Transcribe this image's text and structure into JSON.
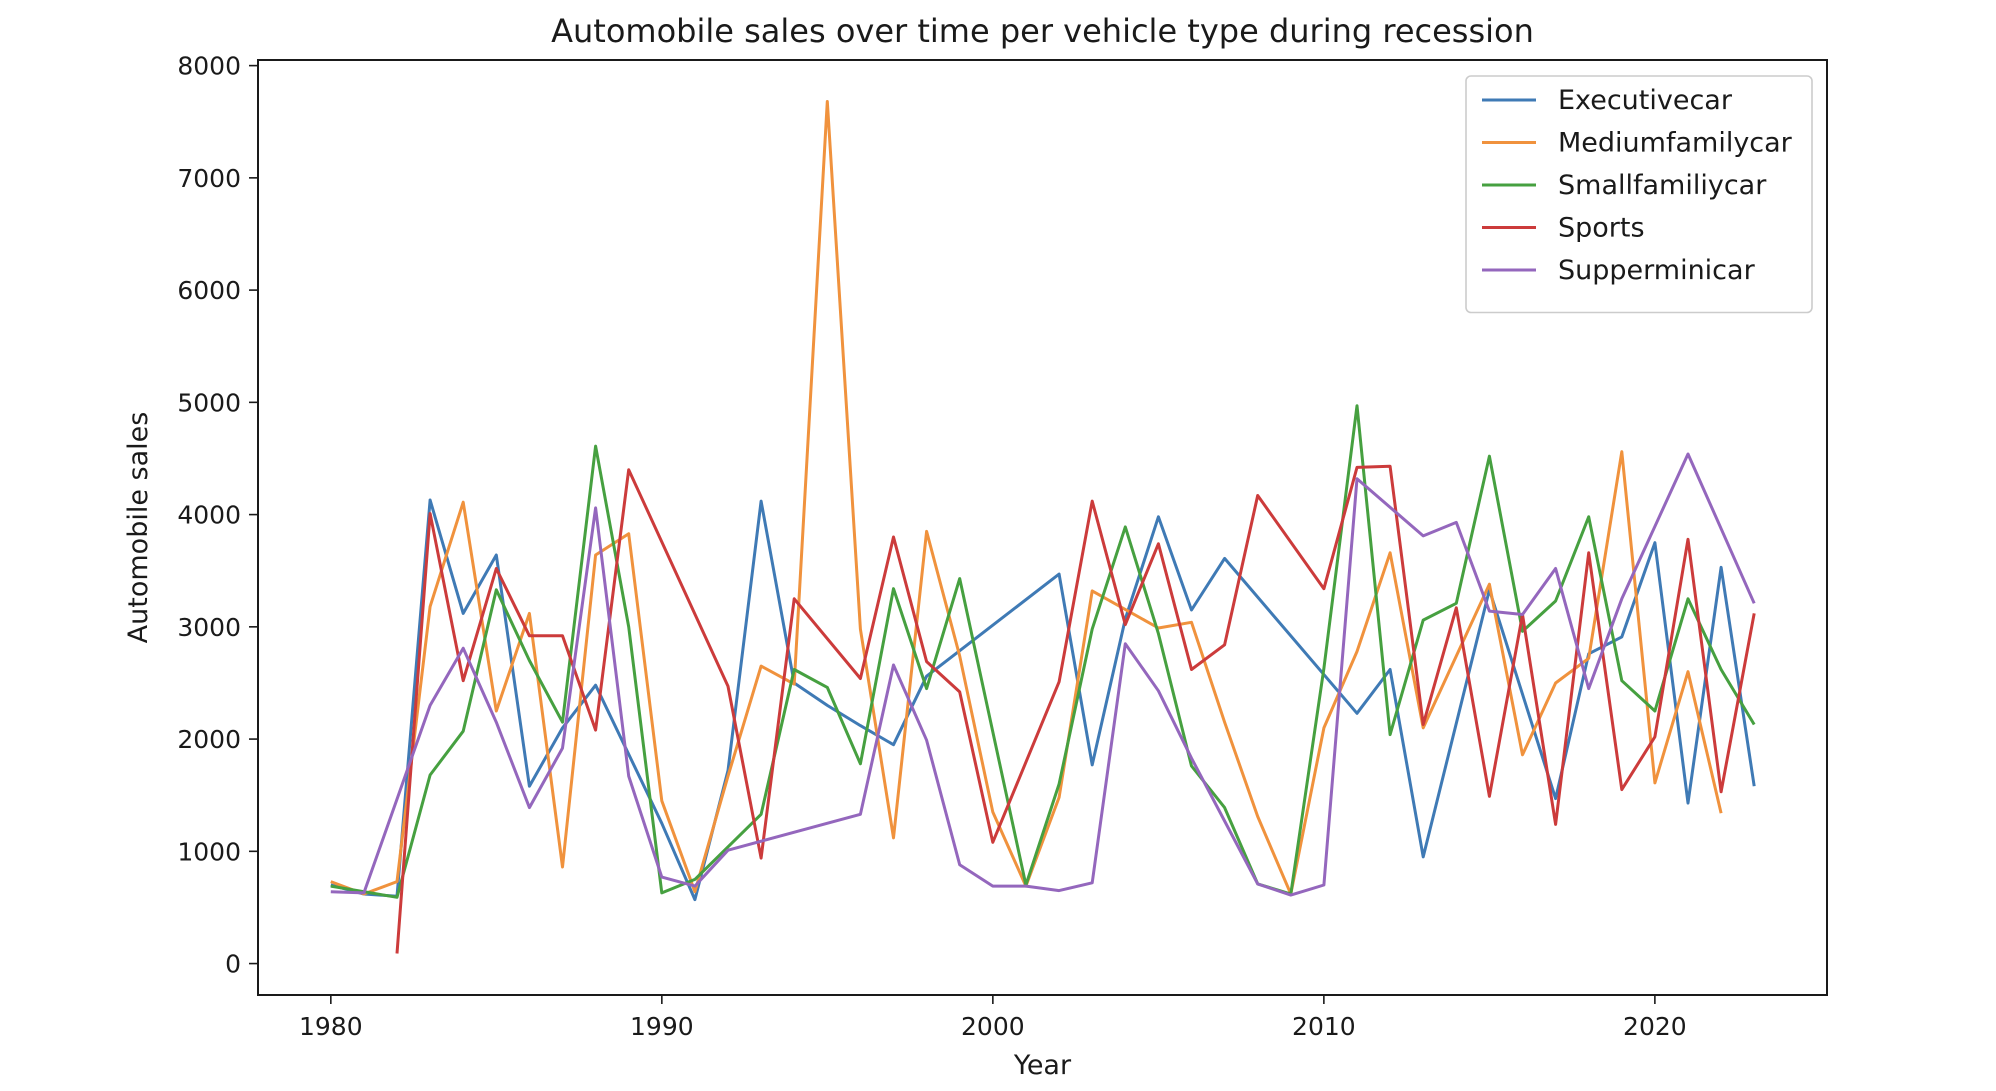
{
  "chart_data": {
    "type": "line",
    "title": "Automobile sales over time per vehicle type during recession",
    "xlabel": "Year",
    "ylabel": "Automobile sales",
    "xlim": [
      1977.8,
      2025.2
    ],
    "ylim": [
      -280,
      8050
    ],
    "xticks": [
      1980,
      1990,
      2000,
      2010,
      2020
    ],
    "yticks": [
      0,
      1000,
      2000,
      3000,
      4000,
      5000,
      6000,
      7000,
      8000
    ],
    "grid": false,
    "legend_position": "top-right",
    "series": [
      {
        "name": "Executivecar",
        "color": "#3f7ab5",
        "points": [
          [
            1980,
            700
          ],
          [
            1981,
            620
          ],
          [
            1982,
            600
          ],
          [
            1983,
            4130
          ],
          [
            1984,
            3120
          ],
          [
            1985,
            3640
          ],
          [
            1986,
            1580
          ],
          [
            1987,
            2100
          ],
          [
            1988,
            2480
          ],
          [
            1990,
            1250
          ],
          [
            1991,
            570
          ],
          [
            1992,
            1720
          ],
          [
            1993,
            4120
          ],
          [
            1994,
            2500
          ],
          [
            1995,
            2300
          ],
          [
            1996,
            2120
          ],
          [
            1997,
            1950
          ],
          [
            1998,
            2560
          ],
          [
            2002,
            3470
          ],
          [
            2003,
            1770
          ],
          [
            2004,
            3070
          ],
          [
            2005,
            3980
          ],
          [
            2006,
            3150
          ],
          [
            2007,
            3610
          ],
          [
            2011,
            2230
          ],
          [
            2012,
            2620
          ],
          [
            2013,
            950
          ],
          [
            2015,
            3330
          ],
          [
            2017,
            1470
          ],
          [
            2018,
            2760
          ],
          [
            2019,
            2910
          ],
          [
            2020,
            3750
          ],
          [
            2021,
            1430
          ],
          [
            2022,
            3530
          ],
          [
            2023,
            1580
          ]
        ]
      },
      {
        "name": "Mediumfamilycar",
        "color": "#f0923d",
        "points": [
          [
            1980,
            730
          ],
          [
            1981,
            620
          ],
          [
            1982,
            730
          ],
          [
            1983,
            3180
          ],
          [
            1984,
            4110
          ],
          [
            1985,
            2250
          ],
          [
            1986,
            3120
          ],
          [
            1987,
            860
          ],
          [
            1988,
            3640
          ],
          [
            1989,
            3830
          ],
          [
            1990,
            1450
          ],
          [
            1991,
            640
          ],
          [
            1992,
            1670
          ],
          [
            1993,
            2650
          ],
          [
            1994,
            2490
          ],
          [
            1995,
            7680
          ],
          [
            1996,
            2980
          ],
          [
            1997,
            1120
          ],
          [
            1998,
            3850
          ],
          [
            1999,
            2740
          ],
          [
            2000,
            1350
          ],
          [
            2001,
            690
          ],
          [
            2002,
            1480
          ],
          [
            2003,
            3320
          ],
          [
            2005,
            2990
          ],
          [
            2006,
            3040
          ],
          [
            2007,
            2150
          ],
          [
            2008,
            1310
          ],
          [
            2009,
            620
          ],
          [
            2010,
            2100
          ],
          [
            2011,
            2780
          ],
          [
            2012,
            3660
          ],
          [
            2013,
            2100
          ],
          [
            2015,
            3380
          ],
          [
            2016,
            1860
          ],
          [
            2017,
            2500
          ],
          [
            2018,
            2720
          ],
          [
            2019,
            4560
          ],
          [
            2020,
            1610
          ],
          [
            2021,
            2600
          ],
          [
            2022,
            1340
          ]
        ]
      },
      {
        "name": "Smallfamiliycar",
        "color": "#46a040",
        "points": [
          [
            1980,
            690
          ],
          [
            1982,
            590
          ],
          [
            1983,
            1680
          ],
          [
            1984,
            2070
          ],
          [
            1985,
            3330
          ],
          [
            1986,
            2700
          ],
          [
            1987,
            2150
          ],
          [
            1988,
            4610
          ],
          [
            1989,
            3000
          ],
          [
            1990,
            630
          ],
          [
            1991,
            750
          ],
          [
            1993,
            1330
          ],
          [
            1994,
            2620
          ],
          [
            1995,
            2460
          ],
          [
            1996,
            1780
          ],
          [
            1997,
            3340
          ],
          [
            1998,
            2450
          ],
          [
            1999,
            3430
          ],
          [
            2001,
            700
          ],
          [
            2002,
            1600
          ],
          [
            2003,
            2980
          ],
          [
            2004,
            3890
          ],
          [
            2005,
            2940
          ],
          [
            2006,
            1760
          ],
          [
            2007,
            1390
          ],
          [
            2008,
            710
          ],
          [
            2009,
            620
          ],
          [
            2010,
            2630
          ],
          [
            2011,
            4970
          ],
          [
            2012,
            2040
          ],
          [
            2013,
            3060
          ],
          [
            2014,
            3210
          ],
          [
            2015,
            4520
          ],
          [
            2016,
            2960
          ],
          [
            2017,
            3230
          ],
          [
            2018,
            3980
          ],
          [
            2019,
            2520
          ],
          [
            2020,
            2250
          ],
          [
            2021,
            3250
          ],
          [
            2022,
            2620
          ],
          [
            2023,
            2130
          ]
        ]
      },
      {
        "name": "Sports",
        "color": "#cc3b3b",
        "points": [
          [
            1982,
            90
          ],
          [
            1983,
            4010
          ],
          [
            1984,
            2520
          ],
          [
            1985,
            3520
          ],
          [
            1986,
            2920
          ],
          [
            1987,
            2920
          ],
          [
            1988,
            2080
          ],
          [
            1989,
            4400
          ],
          [
            1992,
            2470
          ],
          [
            1993,
            940
          ],
          [
            1994,
            3250
          ],
          [
            1996,
            2540
          ],
          [
            1997,
            3800
          ],
          [
            1998,
            2690
          ],
          [
            1999,
            2420
          ],
          [
            2000,
            1080
          ],
          [
            2002,
            2510
          ],
          [
            2003,
            4120
          ],
          [
            2004,
            3020
          ],
          [
            2005,
            3740
          ],
          [
            2006,
            2620
          ],
          [
            2007,
            2840
          ],
          [
            2008,
            4170
          ],
          [
            2010,
            3340
          ],
          [
            2011,
            4420
          ],
          [
            2012,
            4430
          ],
          [
            2013,
            2130
          ],
          [
            2014,
            3170
          ],
          [
            2015,
            1490
          ],
          [
            2016,
            3110
          ],
          [
            2017,
            1240
          ],
          [
            2018,
            3660
          ],
          [
            2019,
            1550
          ],
          [
            2020,
            2020
          ],
          [
            2021,
            3780
          ],
          [
            2022,
            1530
          ],
          [
            2023,
            3120
          ]
        ]
      },
      {
        "name": "Supperminicar",
        "color": "#9467bd",
        "points": [
          [
            1980,
            640
          ],
          [
            1981,
            630
          ],
          [
            1983,
            2300
          ],
          [
            1984,
            2810
          ],
          [
            1985,
            2150
          ],
          [
            1986,
            1390
          ],
          [
            1987,
            1920
          ],
          [
            1988,
            4060
          ],
          [
            1989,
            1670
          ],
          [
            1990,
            770
          ],
          [
            1991,
            690
          ],
          [
            1992,
            1010
          ],
          [
            1996,
            1330
          ],
          [
            1997,
            2660
          ],
          [
            1998,
            1990
          ],
          [
            1999,
            880
          ],
          [
            2000,
            690
          ],
          [
            2001,
            690
          ],
          [
            2002,
            650
          ],
          [
            2003,
            720
          ],
          [
            2004,
            2850
          ],
          [
            2005,
            2430
          ],
          [
            2006,
            1830
          ],
          [
            2007,
            1270
          ],
          [
            2008,
            710
          ],
          [
            2009,
            610
          ],
          [
            2010,
            700
          ],
          [
            2011,
            4320
          ],
          [
            2013,
            3810
          ],
          [
            2014,
            3930
          ],
          [
            2015,
            3140
          ],
          [
            2016,
            3110
          ],
          [
            2017,
            3520
          ],
          [
            2018,
            2450
          ],
          [
            2019,
            3250
          ],
          [
            2021,
            4540
          ],
          [
            2023,
            3210
          ]
        ]
      }
    ]
  }
}
